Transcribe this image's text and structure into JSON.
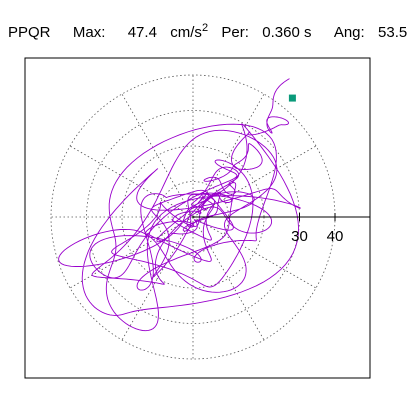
{
  "header": {
    "station": "PPQR",
    "max_label": "Max:",
    "max_value": "47.4",
    "max_unit": "cm/s",
    "max_unit_exp": "2",
    "per_label": "Per:",
    "per_value": "0.360 s",
    "ang_label": "Ang:",
    "ang_value": "53.5"
  },
  "chart_data": {
    "type": "polar-orbit",
    "max_value": 47.4,
    "period_s": 0.36,
    "angle_deg": 53.5,
    "radial_ticks": [
      "30",
      "40"
    ],
    "grid_radii": [
      10,
      20,
      30,
      40
    ],
    "grid_spokes_deg": [
      0,
      30,
      60,
      90,
      120,
      150,
      180,
      210,
      240,
      270,
      300,
      330
    ],
    "grid": true,
    "trace_color": "#9900cc",
    "marker_color": "#0a9a7a",
    "marker_point": [
      28,
      33.5
    ]
  }
}
